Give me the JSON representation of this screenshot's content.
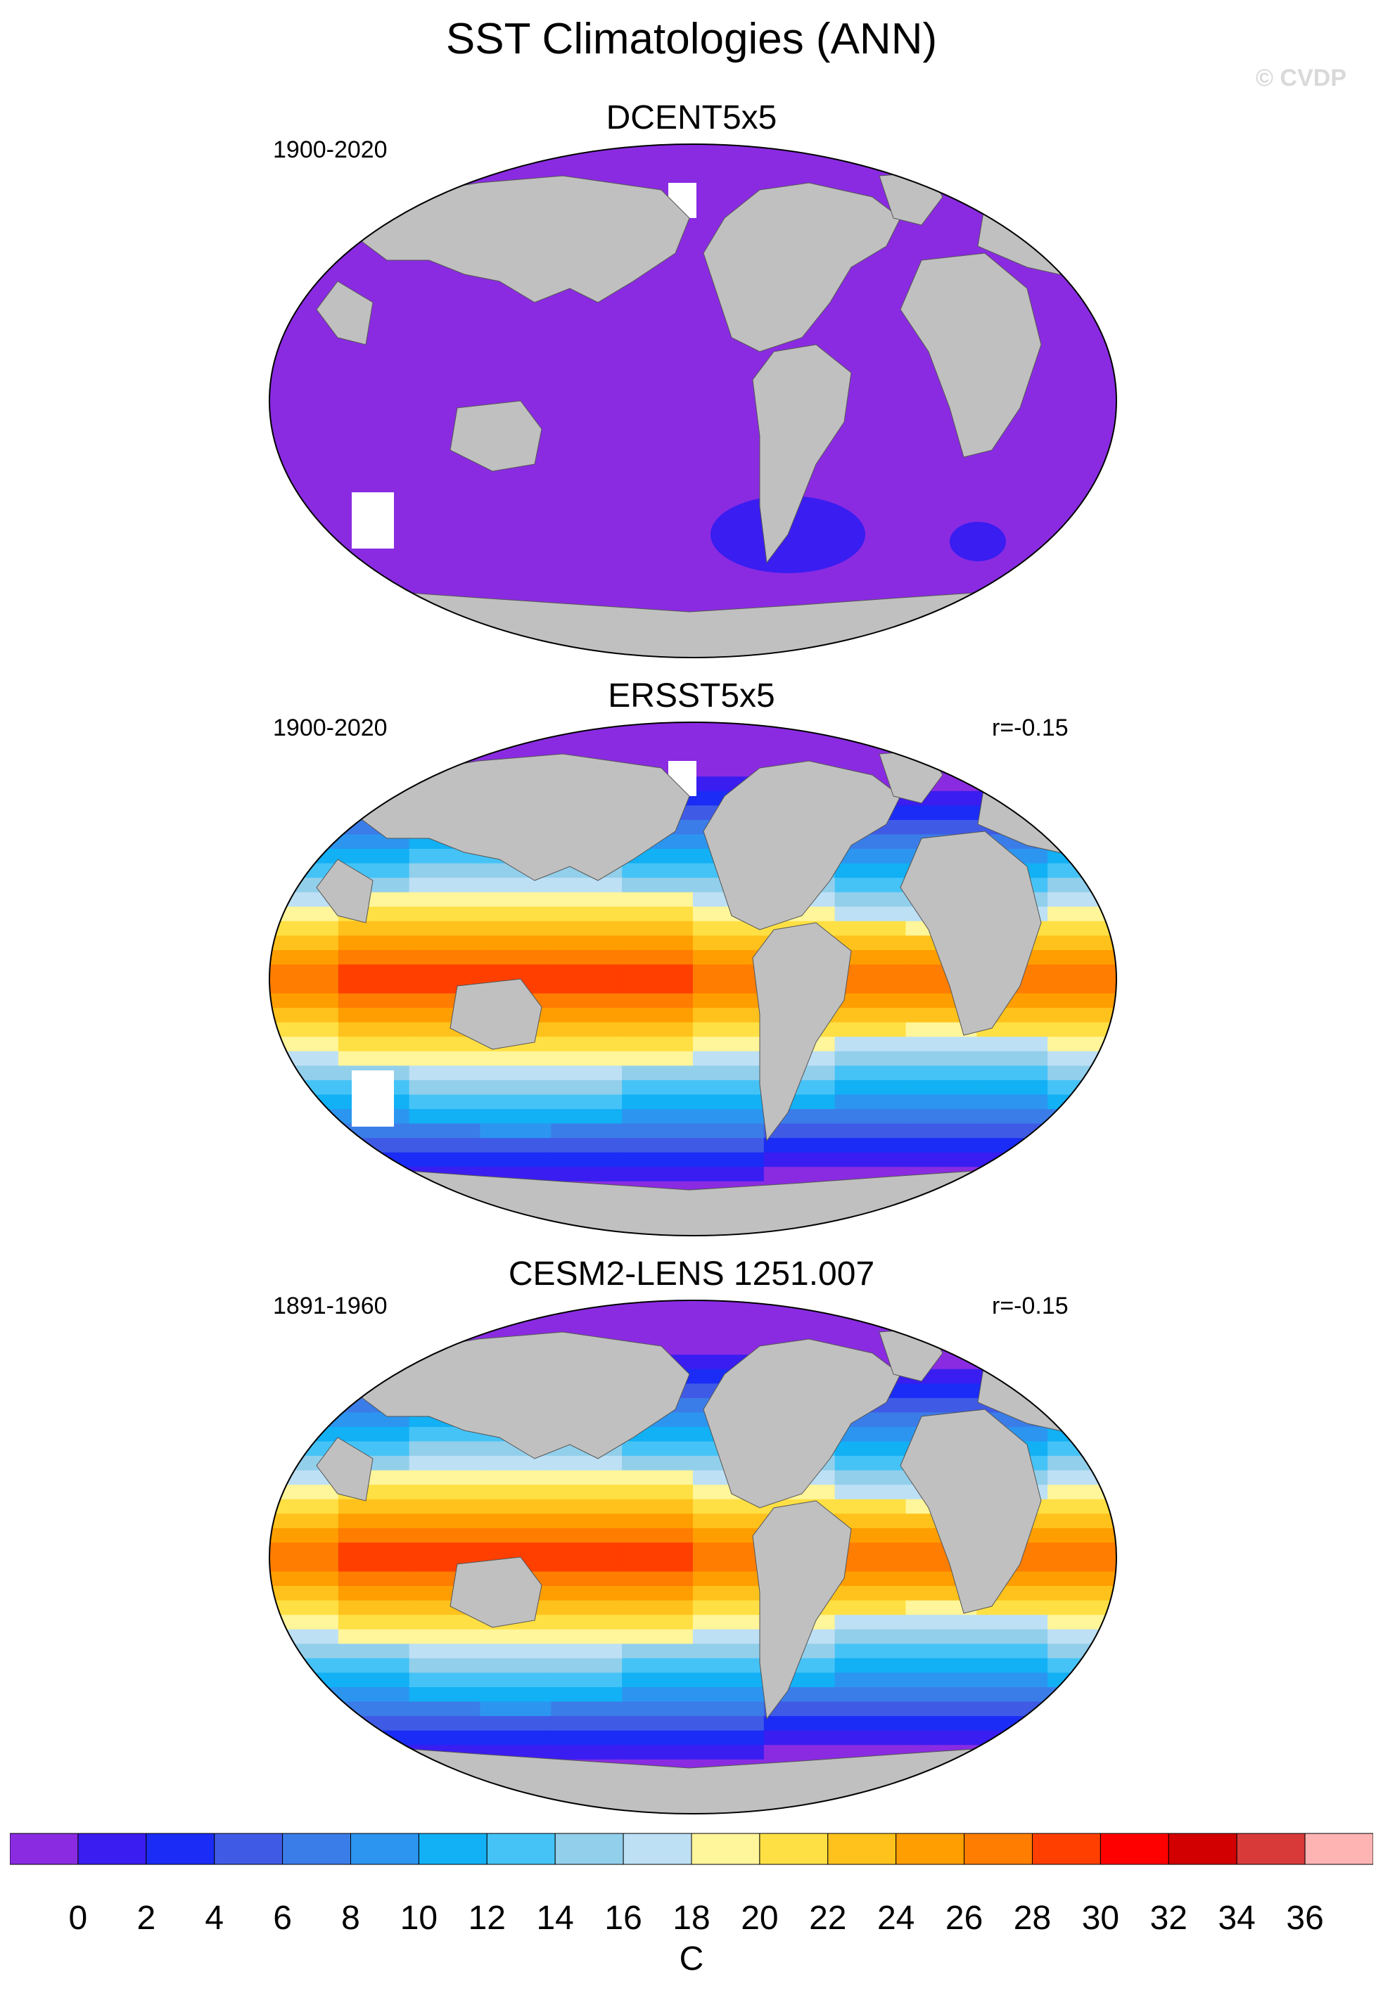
{
  "title": "SST Climatologies (ANN)",
  "watermark": "© CVDP",
  "panels": [
    {
      "name": "DCENT5x5",
      "years": "1900-2020",
      "corr": "",
      "style": "sparse"
    },
    {
      "name": "ERSST5x5",
      "years": "1900-2020",
      "corr": "r=-0.15",
      "style": "full"
    },
    {
      "name": "CESM2-LENS 1251.007",
      "years": "1891-1960",
      "corr": "r=-0.15",
      "style": "full"
    }
  ],
  "colorbar": {
    "unit": "C",
    "tick_labels": [
      "0",
      "2",
      "4",
      "6",
      "8",
      "10",
      "12",
      "14",
      "16",
      "18",
      "20",
      "22",
      "24",
      "26",
      "28",
      "30",
      "32",
      "34",
      "36"
    ],
    "colors": [
      "#8a2be2",
      "#3a1df0",
      "#1a2cf5",
      "#3f5be6",
      "#3b7de8",
      "#2c95f0",
      "#12b0f5",
      "#45c3f7",
      "#92cfeb",
      "#bde0f5",
      "#fff59a",
      "#ffe044",
      "#ffc21c",
      "#ff9e00",
      "#ff7d00",
      "#ff3f00",
      "#ff0000",
      "#d20000",
      "#d83a3a",
      "#ffb4b4"
    ],
    "land_color": "#c0c0c0",
    "missing_color": "#ffffff"
  }
}
